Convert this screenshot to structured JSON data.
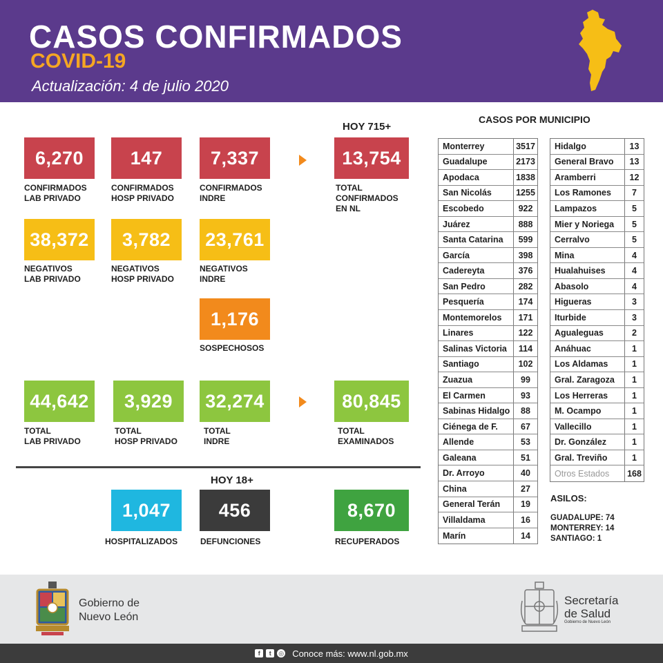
{
  "header": {
    "title": "CASOS CONFIRMADOS",
    "subtitle": "COVID-19",
    "date": "Actualización: 4 de julio 2020"
  },
  "stats": {
    "hoy_confirmados": "HOY 715+",
    "confirmados_lab": {
      "value": "6,270",
      "label1": "CONFIRMADOS",
      "label2": "LAB PRIVADO"
    },
    "confirmados_hosp": {
      "value": "147",
      "label1": "CONFIRMADOS",
      "label2": "HOSP PRIVADO"
    },
    "confirmados_indre": {
      "value": "7,337",
      "label1": "CONFIRMADOS",
      "label2": "INDRE"
    },
    "total_confirmados": {
      "value": "13,754",
      "label1": "TOTAL",
      "label2": "CONFIRMADOS",
      "label3": "EN NL"
    },
    "negativos_lab": {
      "value": "38,372",
      "label1": "NEGATIVOS",
      "label2": "LAB PRIVADO"
    },
    "negativos_hosp": {
      "value": "3,782",
      "label1": "NEGATIVOS",
      "label2": "HOSP PRIVADO"
    },
    "negativos_indre": {
      "value": "23,761",
      "label1": "NEGATIVOS",
      "label2": "INDRE"
    },
    "sospechosos": {
      "value": "1,176",
      "label1": "SOSPECHOSOS"
    },
    "total_lab": {
      "value": "44,642",
      "label1": "TOTAL",
      "label2": "LAB PRIVADO"
    },
    "total_hosp": {
      "value": "3,929",
      "label1": "TOTAL",
      "label2": "HOSP PRIVADO"
    },
    "total_indre": {
      "value": "32,274",
      "label1": "TOTAL",
      "label2": "INDRE"
    },
    "total_examinados": {
      "value": "80,845",
      "label1": "TOTAL",
      "label2": "EXAMINADOS"
    },
    "hoy_defunciones": "HOY 18+",
    "hospitalizados": {
      "value": "1,047",
      "label1": "HOSPITALIZADOS"
    },
    "defunciones": {
      "value": "456",
      "label1": "DEFUNCIONES"
    },
    "recuperados": {
      "value": "8,670",
      "label1": "RECUPERADOS"
    }
  },
  "municipios": {
    "title": "CASOS POR MUNICIPIO",
    "col1": [
      {
        "name": "Monterrey",
        "value": "3517"
      },
      {
        "name": "Guadalupe",
        "value": "2173"
      },
      {
        "name": "Apodaca",
        "value": "1838"
      },
      {
        "name": "San Nicolás",
        "value": "1255"
      },
      {
        "name": "Escobedo",
        "value": "922"
      },
      {
        "name": "Juárez",
        "value": "888"
      },
      {
        "name": "Santa Catarina",
        "value": "599"
      },
      {
        "name": "García",
        "value": "398"
      },
      {
        "name": "Cadereyta",
        "value": "376"
      },
      {
        "name": "San Pedro",
        "value": "282"
      },
      {
        "name": "Pesquería",
        "value": "174"
      },
      {
        "name": "Montemorelos",
        "value": "171"
      },
      {
        "name": "Linares",
        "value": "122"
      },
      {
        "name": "Salinas Victoria",
        "value": "114"
      },
      {
        "name": "Santiago",
        "value": "102"
      },
      {
        "name": "Zuazua",
        "value": "99"
      },
      {
        "name": "El Carmen",
        "value": "93"
      },
      {
        "name": "Sabinas Hidalgo",
        "value": "88"
      },
      {
        "name": "Ciénega de F.",
        "value": "67"
      },
      {
        "name": "Allende",
        "value": "53"
      },
      {
        "name": "Galeana",
        "value": "51"
      },
      {
        "name": "Dr. Arroyo",
        "value": "40"
      },
      {
        "name": "China",
        "value": "27"
      },
      {
        "name": "General Terán",
        "value": "19"
      },
      {
        "name": "Villaldama",
        "value": "16"
      },
      {
        "name": "Marín",
        "value": "14"
      }
    ],
    "col2": [
      {
        "name": "Hidalgo",
        "value": "13"
      },
      {
        "name": "General Bravo",
        "value": "13"
      },
      {
        "name": "Aramberri",
        "value": "12"
      },
      {
        "name": "Los Ramones",
        "value": "7"
      },
      {
        "name": "Lampazos",
        "value": "5"
      },
      {
        "name": "Mier y Noriega",
        "value": "5"
      },
      {
        "name": "Cerralvo",
        "value": "5"
      },
      {
        "name": "Mina",
        "value": "4"
      },
      {
        "name": "Hualahuises",
        "value": "4"
      },
      {
        "name": "Abasolo",
        "value": "4"
      },
      {
        "name": "Higueras",
        "value": "3"
      },
      {
        "name": "Iturbide",
        "value": "3"
      },
      {
        "name": "Agualeguas",
        "value": "2"
      },
      {
        "name": "Anáhuac",
        "value": "1"
      },
      {
        "name": "Los Aldamas",
        "value": "1"
      },
      {
        "name": "Gral. Zaragoza",
        "value": "1"
      },
      {
        "name": "Los Herreras",
        "value": "1"
      },
      {
        "name": "M. Ocampo",
        "value": "1"
      },
      {
        "name": "Vallecillo",
        "value": "1"
      },
      {
        "name": "Dr. González",
        "value": "1"
      },
      {
        "name": "Gral. Treviño",
        "value": "1"
      },
      {
        "name": "Otros Estados",
        "value": "168",
        "grey": true
      }
    ]
  },
  "asilos": {
    "title": "ASILOS:",
    "lines": [
      "GUADALUPE: 74",
      "MONTERREY: 14",
      "SANTIAGO: 1"
    ]
  },
  "footer": {
    "gobierno_line1": "Gobierno de",
    "gobierno_line2": "Nuevo León",
    "secretaria_line1": "Secretaría",
    "secretaria_line2": "de Salud",
    "secretaria_small": "Gobierno de Nuevo León",
    "conoce": "Conoce más: www.nl.gob.mx"
  },
  "colors": {
    "header": "#5b3a8c",
    "accent": "#f5a623",
    "red": "#c8434d",
    "yellow": "#f6be16",
    "orange": "#f28a1c",
    "green": "#8dc63f",
    "blue": "#1fb7e0",
    "dark": "#3b3b3b",
    "dgreen": "#3fa340"
  },
  "icons": [
    "nuevo-leon-map-icon",
    "arrow-right-icon",
    "facebook-icon",
    "twitter-icon",
    "instagram-icon",
    "coat-of-arms-icon"
  ]
}
